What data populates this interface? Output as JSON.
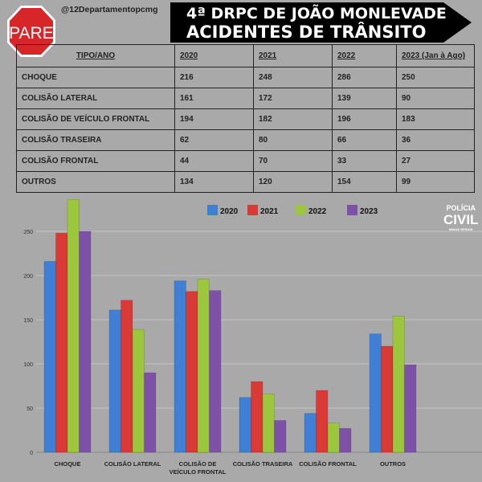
{
  "sign": {
    "label": "PARE"
  },
  "handle": "@12Departamentopcmg",
  "banner": {
    "line1": "4ª DRPC DE JOÃO MONLEVADE",
    "line2": "ACIDENTES DE TRÂNSITO"
  },
  "table": {
    "headers": [
      "TIPO/ANO",
      "2020",
      "2021",
      "2022",
      "2023 (Jan à Ago)"
    ],
    "rows": [
      [
        "CHOQUE",
        "216",
        "248",
        "286",
        "250"
      ],
      [
        "COLISÃO LATERAL",
        "161",
        "172",
        "139",
        "90"
      ],
      [
        "COLISÃO DE VEÍCULO FRONTAL",
        "194",
        "182",
        "196",
        "183"
      ],
      [
        "COLISÃO TRASEIRA",
        "62",
        "80",
        "66",
        "36"
      ],
      [
        "COLISÃO FRONTAL",
        "44",
        "70",
        "33",
        "27"
      ],
      [
        "OUTROS",
        "134",
        "120",
        "154",
        "99"
      ]
    ]
  },
  "logo": {
    "line1": "POLÍCIA",
    "line2": "CIVIL",
    "line3": "MINAS GERAIS"
  },
  "chart_data": {
    "type": "bar",
    "categories": [
      "CHOQUE",
      "COLISÃO LATERAL",
      "COLISÃO DE VEÍCULO FRONTAL",
      "COLISÃO TRASEIRA",
      "COLISÃO FRONTAL",
      "OUTROS"
    ],
    "series": [
      {
        "name": "2020",
        "color": "#3f7fd6",
        "values": [
          216,
          161,
          194,
          62,
          44,
          134
        ]
      },
      {
        "name": "2021",
        "color": "#d93a36",
        "values": [
          248,
          172,
          182,
          80,
          70,
          120
        ]
      },
      {
        "name": "2022",
        "color": "#9bc63d",
        "values": [
          286,
          139,
          196,
          66,
          33,
          154
        ]
      },
      {
        "name": "2023",
        "color": "#7e51a8",
        "values": [
          250,
          90,
          183,
          36,
          27,
          99
        ]
      }
    ],
    "yticks": [
      "0",
      "50",
      "100",
      "150",
      "200",
      "250"
    ],
    "ylim": [
      0,
      290
    ],
    "grid": true,
    "legend": "top-center"
  }
}
